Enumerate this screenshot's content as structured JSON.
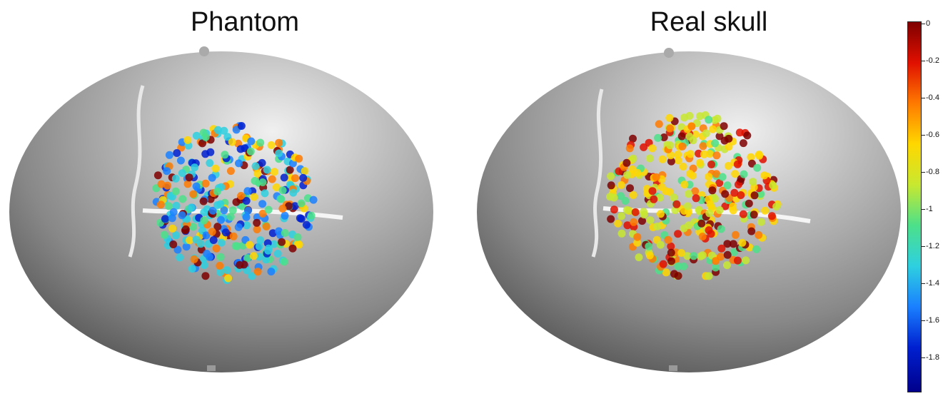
{
  "panels": [
    {
      "title": "Phantom"
    },
    {
      "title": "Real skull"
    }
  ],
  "colorbar": {
    "ticks": [
      "0",
      "-0.2",
      "-0.4",
      "-0.6",
      "-0.8",
      "-1",
      "-1.2",
      "-1.4",
      "-1.6",
      "-1.8"
    ],
    "colors": [
      "#7f0000",
      "#e01000",
      "#ff7a00",
      "#ffd700",
      "#c8e830",
      "#4ce08a",
      "#2ed0e0",
      "#1a80ff",
      "#0020d0",
      "#00008b"
    ]
  }
}
